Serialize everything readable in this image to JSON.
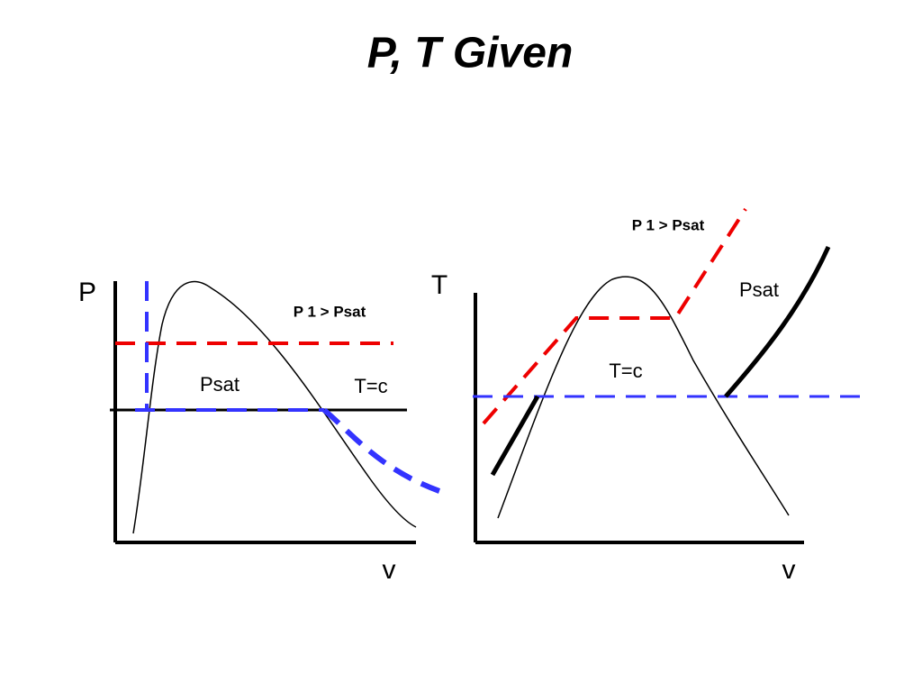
{
  "title": "P, T   Given",
  "left_diagram": {
    "y_axis": "P",
    "x_axis": "v",
    "pressure_note": "P 1 > Psat",
    "region_label": "Psat",
    "isotherm_label": "T=c"
  },
  "right_diagram": {
    "y_axis": "T",
    "x_axis": "v",
    "pressure_note": "P 1 > Psat",
    "curve_label": "Psat",
    "isotherm_label": "T=c"
  }
}
